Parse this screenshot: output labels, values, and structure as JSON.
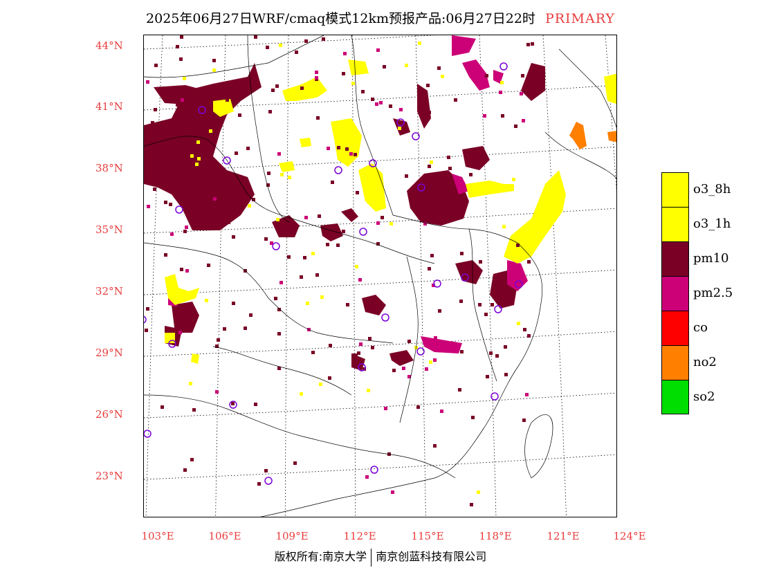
{
  "header": {
    "title": "2025年06月27日WRF/cmaq模式12km预报产品:06月27日22时",
    "tag": "PRIMARY",
    "tag_color": "#e83c3c"
  },
  "axes": {
    "lat_labels": [
      "44°N",
      "41°N",
      "38°N",
      "35°N",
      "32°N",
      "29°N",
      "26°N",
      "23°N"
    ],
    "lon_labels": [
      "103°E",
      "106°E",
      "109°E",
      "112°E",
      "115°E",
      "118°E",
      "121°E",
      "124°E"
    ],
    "label_color": "#e83c3c"
  },
  "legend": {
    "items": [
      {
        "label": "o3_8h",
        "color": "#ffff00"
      },
      {
        "label": "o3_1h",
        "color": "#ffff00"
      },
      {
        "label": "pm10",
        "color": "#7a0026"
      },
      {
        "label": "pm2.5",
        "color": "#cc0077"
      },
      {
        "label": "co",
        "color": "#ff0000"
      },
      {
        "label": "no2",
        "color": "#ff7f00"
      },
      {
        "label": "so2",
        "color": "#00dd00"
      }
    ]
  },
  "footer": {
    "copyright": "版权所有:南京大学",
    "company": "南京创蓝科技有限公司"
  },
  "map": {
    "pollutant_colors": {
      "pm10": "#7a0026",
      "pm25": "#cc0077",
      "o3": "#ffff00",
      "no2": "#ff7f00"
    },
    "station_marker_color": "#7b00d6"
  }
}
